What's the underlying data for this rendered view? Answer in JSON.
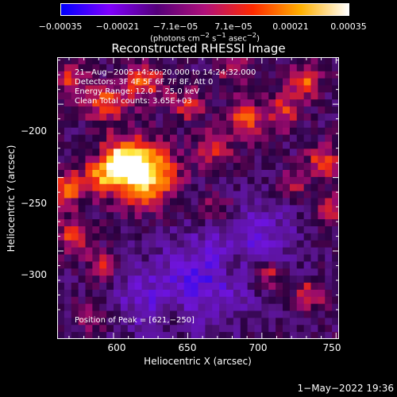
{
  "chart_data": {
    "type": "heatmap",
    "title": "Reconstructed RHESSI Image",
    "xlabel": "Heliocentric X (arcsec)",
    "ylabel": "Heliocentric Y (arcsec)",
    "xlim": [
      562,
      752
    ],
    "ylim": [
      -360,
      -168
    ],
    "xticks": [
      600,
      650,
      700,
      750
    ],
    "xtick_labels": [
      "600",
      "650",
      "700",
      "750"
    ],
    "yticks": [
      -200,
      -250,
      -300
    ],
    "ytick_labels": [
      "−200",
      "−250",
      "−300"
    ],
    "colorbar": {
      "range": [
        -0.00035,
        0.00035
      ],
      "ticks": [
        -0.00035,
        -0.00021,
        -7.1e-05,
        7.1e-05,
        0.00021,
        0.00035
      ],
      "tick_labels": [
        "−0.00035",
        "−0.00021",
        "−7.1e−05",
        "7.1e−05",
        "0.00021",
        "0.00035"
      ],
      "units_prefix": "(photons cm",
      "units_exp1": "−2",
      "units_mid": " s",
      "units_exp2": "−1",
      "units_mid2": " asec",
      "units_exp3": "−2",
      "units_suffix": ")",
      "colors": [
        "#0000ff",
        "#7f00ff",
        "#55007a",
        "#b0107a",
        "#ff2a00",
        "#ffb000",
        "#ffffff"
      ]
    },
    "annotations": [
      "21−Aug−2005 14:20:20.000 to 14:24:32.000",
      "Detectors: 3F 4F 5F 6F 7F 8F, Att 0",
      "Energy Range: 12.0 − 25.0 keV",
      "Clean     Total counts: 3.65E+03"
    ],
    "peak_label": "Position of Peak = [621,−250]",
    "peak": [
      621,
      -250
    ],
    "blobs": [
      {
        "x": 621,
        "y": -248,
        "v": 1.0,
        "s": 15
      },
      {
        "x": 606,
        "y": -238,
        "v": 0.8,
        "s": 10
      },
      {
        "x": 590,
        "y": -250,
        "v": 0.55,
        "s": 8
      },
      {
        "x": 570,
        "y": -258,
        "v": 0.65,
        "s": 8
      },
      {
        "x": 572,
        "y": -290,
        "v": 0.55,
        "s": 8
      },
      {
        "x": 595,
        "y": -200,
        "v": 0.6,
        "s": 9
      },
      {
        "x": 620,
        "y": -185,
        "v": 0.6,
        "s": 9
      },
      {
        "x": 572,
        "y": -185,
        "v": 0.5,
        "s": 8
      },
      {
        "x": 650,
        "y": -200,
        "v": 0.45,
        "s": 8
      },
      {
        "x": 668,
        "y": -230,
        "v": 0.55,
        "s": 8
      },
      {
        "x": 690,
        "y": -210,
        "v": 0.6,
        "s": 9
      },
      {
        "x": 715,
        "y": -205,
        "v": 0.5,
        "s": 8
      },
      {
        "x": 728,
        "y": -185,
        "v": 0.65,
        "s": 8
      },
      {
        "x": 742,
        "y": -240,
        "v": 0.6,
        "s": 8
      },
      {
        "x": 745,
        "y": -270,
        "v": 0.5,
        "s": 7
      },
      {
        "x": 705,
        "y": -315,
        "v": 0.55,
        "s": 7
      },
      {
        "x": 732,
        "y": -330,
        "v": 0.5,
        "s": 7
      },
      {
        "x": 680,
        "y": -310,
        "v": 0.35,
        "s": 6
      },
      {
        "x": 592,
        "y": -310,
        "v": 0.4,
        "s": 7
      },
      {
        "x": 640,
        "y": -345,
        "v": 0.3,
        "s": 7
      },
      {
        "x": 585,
        "y": -345,
        "v": 0.3,
        "s": 7
      },
      {
        "x": 670,
        "y": -270,
        "v": 0.35,
        "s": 7
      },
      {
        "x": 720,
        "y": -255,
        "v": 0.4,
        "s": 7
      },
      {
        "x": 680,
        "y": -175,
        "v": 0.45,
        "s": 7
      }
    ],
    "dark_regions": [
      {
        "x": 660,
        "y": -320,
        "v": -0.5,
        "s": 22
      },
      {
        "x": 700,
        "y": -290,
        "v": -0.35,
        "s": 18
      },
      {
        "x": 620,
        "y": -335,
        "v": -0.3,
        "s": 16
      }
    ]
  },
  "footer": {
    "timestamp": "1−May−2022 19:36"
  }
}
